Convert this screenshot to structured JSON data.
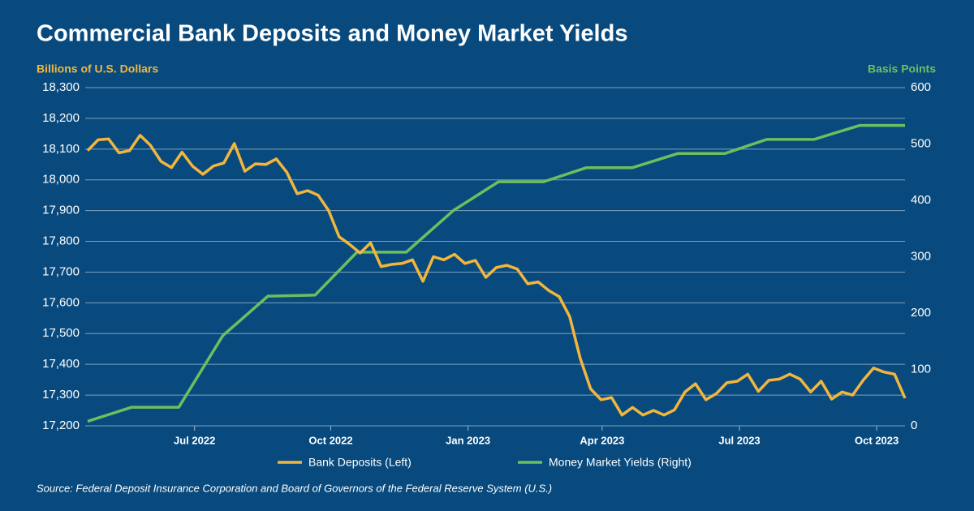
{
  "chart_data": {
    "type": "line",
    "title": "Commercial Bank Deposits and Money Market Yields",
    "y_label": "Billions of U.S. Dollars",
    "y2_label": "Basis Points",
    "source": "Source: Federal Deposit Insurance Corporation and Board of Governors of the Federal Reserve System (U.S.)",
    "xlim": [
      0,
      78
    ],
    "xticks": [
      {
        "value": 10.2,
        "label": "Jul 2022"
      },
      {
        "value": 23.2,
        "label": "Oct 2022"
      },
      {
        "value": 36.3,
        "label": "Jan 2023"
      },
      {
        "value": 49.1,
        "label": "Apr 2023"
      },
      {
        "value": 62.2,
        "label": "Jul 2023"
      },
      {
        "value": 75.3,
        "label": "Oct 2023"
      }
    ],
    "ylim": [
      17200,
      18300
    ],
    "yticks": [
      {
        "value": 17200,
        "label": "17,200"
      },
      {
        "value": 17300,
        "label": "17,300"
      },
      {
        "value": 17400,
        "label": "17,400"
      },
      {
        "value": 17500,
        "label": "17,500"
      },
      {
        "value": 17600,
        "label": "17,600"
      },
      {
        "value": 17700,
        "label": "17,700"
      },
      {
        "value": 17800,
        "label": "17,800"
      },
      {
        "value": 17900,
        "label": "17,900"
      },
      {
        "value": 18000,
        "label": "18,000"
      },
      {
        "value": 18100,
        "label": "18,100"
      },
      {
        "value": 18200,
        "label": "18,200"
      },
      {
        "value": 18300,
        "label": "18,300"
      }
    ],
    "y2lim": [
      0,
      600
    ],
    "y2ticks": [
      0,
      100,
      200,
      300,
      400,
      500,
      600
    ],
    "grid": true,
    "legend": "bottom",
    "series": [
      {
        "name": "Bank Deposits (Left)",
        "color": "#f3b63c",
        "axis": "y",
        "x": [
          0,
          1,
          2,
          3,
          4,
          5,
          6,
          7,
          8,
          9,
          10,
          11,
          12,
          13,
          14,
          15,
          16,
          17,
          18,
          19,
          20,
          21,
          22,
          23,
          24,
          25,
          26,
          27,
          28,
          29,
          30,
          31,
          32,
          33,
          34,
          35,
          36,
          37,
          38,
          39,
          40,
          41,
          42,
          43,
          44,
          45,
          46,
          47,
          48,
          49,
          50,
          51,
          52,
          53,
          54,
          55,
          56,
          57,
          58,
          59,
          60,
          61,
          62,
          63,
          64,
          65,
          66,
          67,
          68,
          69,
          70,
          71,
          72,
          73,
          74,
          75,
          76,
          77,
          78
        ],
        "values": [
          18095,
          18130,
          18133,
          18088,
          18095,
          18145,
          18112,
          18060,
          18040,
          18090,
          18045,
          18018,
          18045,
          18055,
          18118,
          18028,
          18052,
          18050,
          18068,
          18025,
          17955,
          17965,
          17950,
          17900,
          17815,
          17790,
          17762,
          17795,
          17718,
          17725,
          17728,
          17740,
          17670,
          17750,
          17740,
          17758,
          17728,
          17738,
          17683,
          17715,
          17722,
          17710,
          17662,
          17668,
          17640,
          17620,
          17555,
          17420,
          17320,
          17285,
          17292,
          17235,
          17260,
          17235,
          17250,
          17235,
          17252,
          17310,
          17337,
          17285,
          17305,
          17340,
          17345,
          17368,
          17312,
          17348,
          17352,
          17368,
          17352,
          17310,
          17345,
          17287,
          17310,
          17300,
          17348,
          17388,
          17375,
          17368,
          17290
        ]
      },
      {
        "name": "Money Market Yields (Right)",
        "color": "#6cbf5f",
        "axis": "y2",
        "x": [
          0,
          4.2,
          8.7,
          12.9,
          17.2,
          21.7,
          25.7,
          30.4,
          34.9,
          39.2,
          43.5,
          47.6,
          52,
          56.3,
          60.8,
          64.8,
          69.3,
          73.7,
          78
        ],
        "values": [
          8,
          33,
          33,
          160,
          230,
          232,
          308,
          308,
          382,
          433,
          433,
          458,
          458,
          483,
          483,
          508,
          508,
          533,
          533
        ]
      }
    ]
  }
}
